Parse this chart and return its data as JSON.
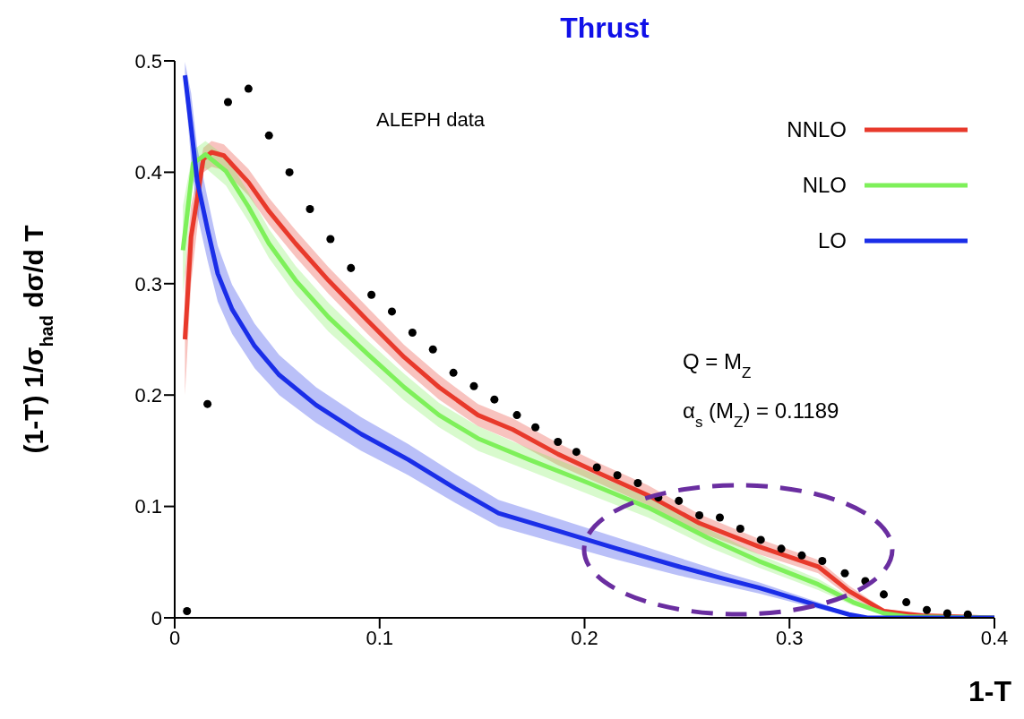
{
  "chart_data": {
    "type": "line",
    "title": "Thrust",
    "xlabel": "1-T",
    "ylabel": "(1-T) 1/σ$_{had}$ dσ/d T",
    "xlim": [
      0,
      0.4
    ],
    "xticks": [
      0,
      0.1,
      0.2,
      0.3,
      0.4
    ],
    "ylim": [
      0,
      0.5
    ],
    "yticks": [
      0,
      0.1,
      0.2,
      0.3,
      0.4,
      0.5
    ],
    "grid": false,
    "legend": "top right",
    "line_style": "solid",
    "annotations": [
      "ALEPH data",
      "Q = M$_{Z}$",
      "α$_{s}$ (M$_{Z}$) = 0.1189"
    ],
    "series": [
      {
        "name": "NNLO",
        "type": "line",
        "color": "#e8392b",
        "marker": "none",
        "x": [
          0.005,
          0.008,
          0.014,
          0.018,
          0.024,
          0.036,
          0.046,
          0.059,
          0.075,
          0.094,
          0.112,
          0.129,
          0.148,
          0.165,
          0.187,
          0.208,
          0.231,
          0.256,
          0.285,
          0.314,
          0.329,
          0.346,
          0.365,
          0.4
        ],
        "values": [
          0.25,
          0.342,
          0.412,
          0.418,
          0.415,
          0.391,
          0.365,
          0.336,
          0.303,
          0.267,
          0.234,
          0.207,
          0.182,
          0.169,
          0.147,
          0.129,
          0.11,
          0.085,
          0.064,
          0.046,
          0.024,
          0.006,
          0.002,
          0
        ],
        "lower": [
          0.2,
          0.3,
          0.4,
          0.405,
          0.402,
          0.379,
          0.353,
          0.324,
          0.291,
          0.255,
          0.223,
          0.196,
          0.172,
          0.159,
          0.137,
          0.12,
          0.101,
          0.077,
          0.057,
          0.04,
          0.019,
          0.004,
          0.001,
          0
        ],
        "upper": [
          0.31,
          0.37,
          0.422,
          0.428,
          0.425,
          0.403,
          0.377,
          0.348,
          0.315,
          0.279,
          0.245,
          0.218,
          0.192,
          0.179,
          0.157,
          0.138,
          0.119,
          0.093,
          0.071,
          0.052,
          0.029,
          0.008,
          0.003,
          0
        ]
      },
      {
        "name": "NLO",
        "type": "line",
        "color": "#7ef05a",
        "marker": "none",
        "x": [
          0.004,
          0.009,
          0.015,
          0.025,
          0.036,
          0.046,
          0.059,
          0.075,
          0.094,
          0.112,
          0.129,
          0.148,
          0.173,
          0.202,
          0.231,
          0.26,
          0.285,
          0.314,
          0.331,
          0.346,
          0.358,
          0.4
        ],
        "values": [
          0.33,
          0.408,
          0.416,
          0.401,
          0.369,
          0.336,
          0.303,
          0.27,
          0.237,
          0.207,
          0.182,
          0.161,
          0.142,
          0.121,
          0.099,
          0.072,
          0.051,
          0.03,
          0.014,
          0.004,
          0.001,
          0
        ],
        "lower": [
          0.29,
          0.395,
          0.404,
          0.388,
          0.356,
          0.323,
          0.29,
          0.257,
          0.225,
          0.195,
          0.171,
          0.15,
          0.132,
          0.111,
          0.09,
          0.064,
          0.045,
          0.025,
          0.011,
          0.003,
          0,
          0
        ],
        "upper": [
          0.37,
          0.42,
          0.428,
          0.414,
          0.382,
          0.349,
          0.316,
          0.283,
          0.249,
          0.219,
          0.193,
          0.172,
          0.152,
          0.131,
          0.108,
          0.08,
          0.057,
          0.035,
          0.017,
          0.005,
          0.002,
          0
        ]
      },
      {
        "name": "LO",
        "type": "line",
        "color": "#1a2ee8",
        "marker": "none",
        "x": [
          0.005,
          0.008,
          0.011,
          0.016,
          0.021,
          0.028,
          0.039,
          0.051,
          0.069,
          0.091,
          0.114,
          0.137,
          0.158,
          0.187,
          0.216,
          0.246,
          0.268,
          0.285,
          0.314,
          0.329,
          0.338,
          0.4
        ],
        "values": [
          0.487,
          0.441,
          0.392,
          0.349,
          0.309,
          0.277,
          0.244,
          0.218,
          0.191,
          0.165,
          0.142,
          0.116,
          0.094,
          0.078,
          0.062,
          0.046,
          0.035,
          0.027,
          0.011,
          0.003,
          0,
          0
        ],
        "lower": [
          0.475,
          0.411,
          0.362,
          0.321,
          0.284,
          0.255,
          0.224,
          0.2,
          0.175,
          0.15,
          0.128,
          0.103,
          0.082,
          0.067,
          0.052,
          0.038,
          0.029,
          0.022,
          0.008,
          0.002,
          0,
          0
        ],
        "upper": [
          0.499,
          0.471,
          0.422,
          0.377,
          0.334,
          0.299,
          0.264,
          0.236,
          0.207,
          0.18,
          0.156,
          0.129,
          0.106,
          0.089,
          0.072,
          0.054,
          0.041,
          0.032,
          0.014,
          0.004,
          0,
          0
        ]
      },
      {
        "type": "scatter",
        "color": "#000000",
        "marker": "circle",
        "x": [
          0.006,
          0.016,
          0.026,
          0.036,
          0.046,
          0.056,
          0.066,
          0.076,
          0.086,
          0.096,
          0.106,
          0.116,
          0.126,
          0.136,
          0.146,
          0.156,
          0.167,
          0.176,
          0.187,
          0.196,
          0.206,
          0.216,
          0.226,
          0.236,
          0.246,
          0.256,
          0.266,
          0.276,
          0.286,
          0.296,
          0.306,
          0.316,
          0.327,
          0.337,
          0.346,
          0.357,
          0.367,
          0.377,
          0.387
        ],
        "values": [
          0.006,
          0.192,
          0.463,
          0.475,
          0.433,
          0.4,
          0.367,
          0.34,
          0.314,
          0.29,
          0.275,
          0.256,
          0.241,
          0.22,
          0.208,
          0.196,
          0.182,
          0.171,
          0.158,
          0.149,
          0.135,
          0.128,
          0.121,
          0.108,
          0.105,
          0.092,
          0.09,
          0.08,
          0.07,
          0.062,
          0.056,
          0.051,
          0.04,
          0.033,
          0.021,
          0.014,
          0.007,
          0.004,
          0.003
        ]
      }
    ]
  }
}
